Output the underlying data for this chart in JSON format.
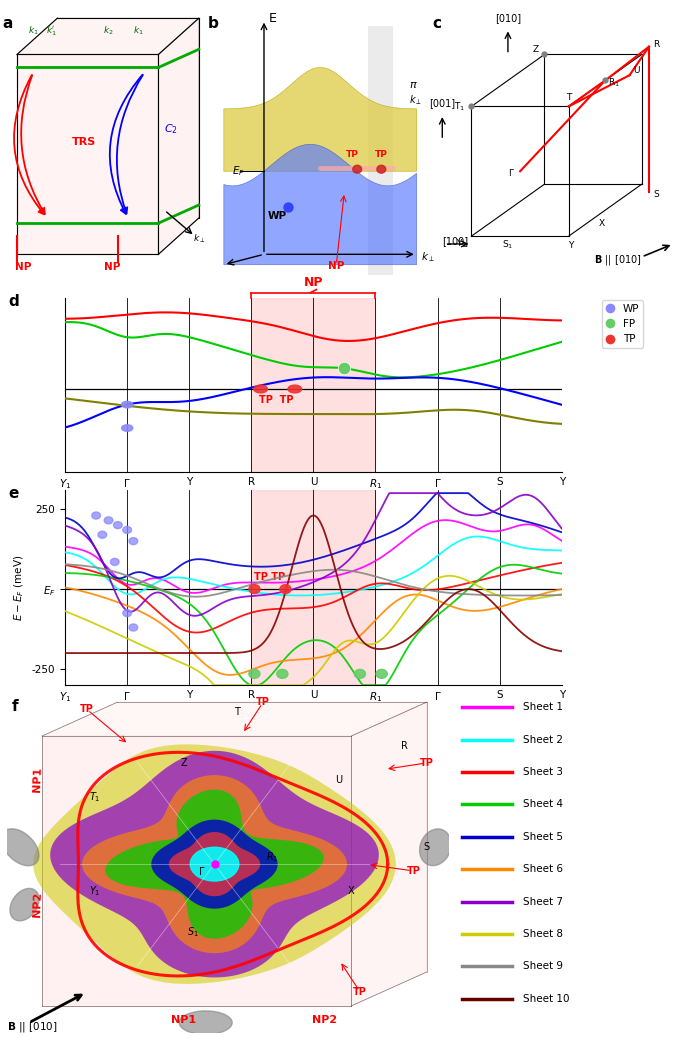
{
  "panel_a": {
    "label": "a"
  },
  "panel_b": {
    "label": "b"
  },
  "panel_c": {
    "label": "c"
  },
  "panel_d": {
    "label": "d",
    "xticks": [
      "$Y_1$",
      "$\\Gamma$",
      "Y",
      "R",
      "U",
      "$R_1$",
      "$\\Gamma$",
      "S",
      "Y"
    ],
    "highlight_color": "#ffcccc",
    "legend": {
      "WP": "#8080ff",
      "FP": "#80cc80",
      "TP": "#ff8080"
    }
  },
  "panel_e": {
    "label": "e",
    "xticks": [
      "$Y_1$",
      "$\\Gamma$",
      "Y",
      "R",
      "U",
      "$R_1$",
      "$\\Gamma$",
      "S",
      "Y"
    ],
    "highlight_color": "#ffcccc",
    "colors": [
      "#ff00ff",
      "#00ffff",
      "#ff0000",
      "#00cc00",
      "#0000cc",
      "#ff8800",
      "#8800cc",
      "#cccc00",
      "#888888",
      "#880000"
    ]
  },
  "panel_f": {
    "label": "f",
    "legend": {
      "Sheet 1": "#ff00ff",
      "Sheet 2": "#00ffff",
      "Sheet 3": "#ff0000",
      "Sheet 4": "#00cc00",
      "Sheet 5": "#0000cc",
      "Sheet 6": "#ff8800",
      "Sheet 7": "#8800cc",
      "Sheet 8": "#cccc00",
      "Sheet 9": "#888888",
      "Sheet 10": "#660000"
    }
  }
}
